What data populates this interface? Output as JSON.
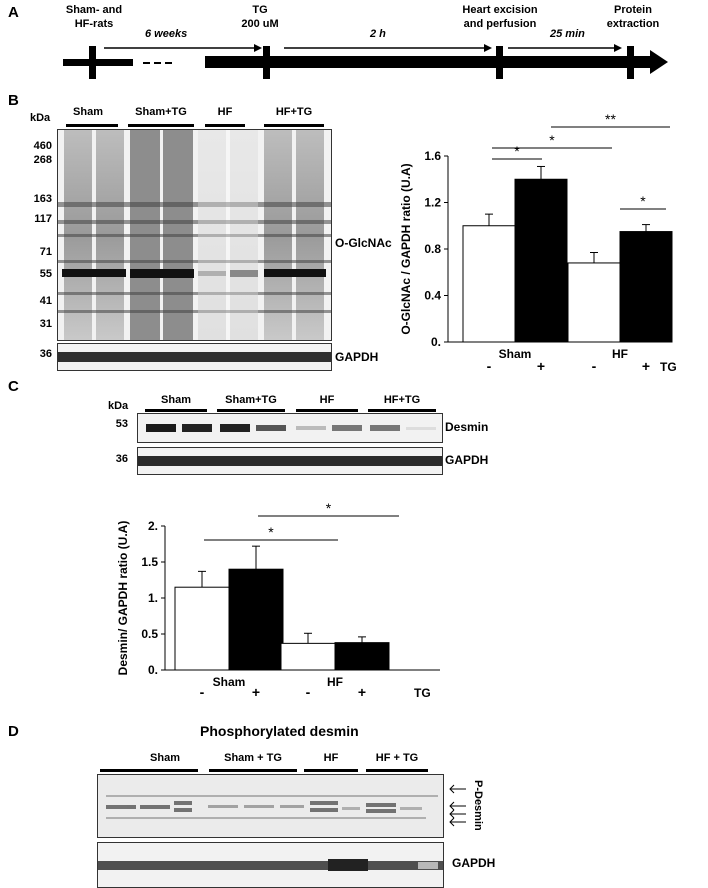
{
  "panelA": {
    "letter": "A",
    "events": [
      {
        "label": "Sham- and\nHF-rats"
      },
      {
        "label": "TG\n200 uM"
      },
      {
        "label": "Heart excision\nand perfusion"
      },
      {
        "label": "Protein\nextraction"
      }
    ],
    "intervals": [
      "6 weeks",
      "2 h",
      "25 min"
    ]
  },
  "panelB": {
    "letter": "B",
    "kda_label": "kDa",
    "groups": [
      "Sham",
      "Sham+TG",
      "HF",
      "HF+TG"
    ],
    "markers": [
      "460",
      "268",
      "163",
      "117",
      "71",
      "55",
      "41",
      "31"
    ],
    "gapdh_marker": "36",
    "blot_label": "O-GlcNAc",
    "gapdh_label": "GAPDH"
  },
  "panelC": {
    "letter": "C",
    "kda_label": "kDa",
    "groups": [
      "Sham",
      "Sham+TG",
      "HF",
      "HF+TG"
    ],
    "desmin_marker": "53",
    "gapdh_marker": "36",
    "desmin_label": "Desmin",
    "gapdh_label": "GAPDH"
  },
  "panelD": {
    "letter": "D",
    "title": "Phosphorylated desmin",
    "groups": [
      "Sham",
      "Sham + TG",
      "HF",
      "HF + TG"
    ],
    "pdesmin_label": "P-Desmin",
    "gapdh_label": "GAPDH"
  },
  "chart_data": [
    {
      "type": "bar",
      "ylabel": "O-GlcNAc / GAPDH ratio (U.A)",
      "ylim": [
        0,
        1.6
      ],
      "yticks": [
        "0.",
        "0.4",
        "0.8",
        "1.2",
        "1.6"
      ],
      "groups": [
        "Sham",
        "HF"
      ],
      "categories": [
        "-",
        "+",
        "-",
        "+"
      ],
      "tg_label": "TG",
      "values": [
        1.0,
        1.4,
        0.68,
        0.95
      ],
      "errors": [
        0.1,
        0.11,
        0.09,
        0.06
      ],
      "fills": [
        "#ffffff",
        "#000000",
        "#ffffff",
        "#000000"
      ],
      "significance": [
        "*",
        "*",
        "*",
        "**"
      ]
    },
    {
      "type": "bar",
      "ylabel": "Desmin/ GAPDH ratio (U.A)",
      "ylim": [
        0,
        2.0
      ],
      "yticks": [
        "0.",
        "0.5",
        "1.",
        "1.5",
        "2."
      ],
      "groups": [
        "Sham",
        "HF"
      ],
      "categories": [
        "-",
        "+",
        "-",
        "+"
      ],
      "tg_label": "TG",
      "values": [
        1.15,
        1.4,
        0.37,
        0.38
      ],
      "errors": [
        0.22,
        0.32,
        0.14,
        0.08
      ],
      "fills": [
        "#ffffff",
        "#000000",
        "#ffffff",
        "#000000"
      ],
      "significance": [
        "*",
        "*"
      ]
    }
  ]
}
